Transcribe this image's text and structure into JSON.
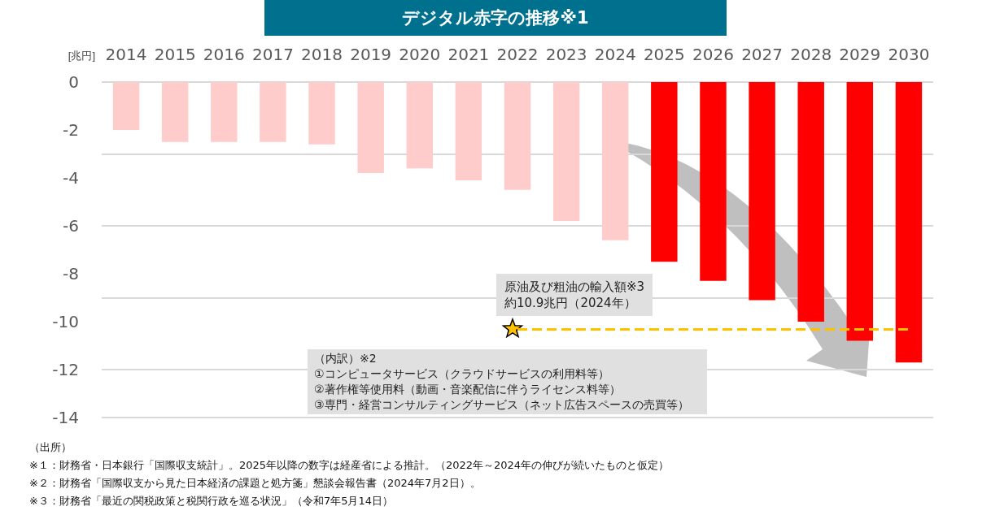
{
  "chart_data": {
    "type": "bar",
    "title": "デジタル赤字の推移※1",
    "ylabel": "[兆円]",
    "categories": [
      "2014",
      "2015",
      "2016",
      "2017",
      "2018",
      "2019",
      "2020",
      "2021",
      "2022",
      "2023",
      "2024",
      "2025",
      "2026",
      "2027",
      "2028",
      "2029",
      "2030"
    ],
    "values": [
      -2.0,
      -2.5,
      -2.5,
      -2.5,
      -2.6,
      -3.8,
      -3.6,
      -4.1,
      -4.5,
      -5.8,
      -6.6,
      -7.5,
      -8.3,
      -9.1,
      -10.0,
      -10.8,
      -11.7
    ],
    "colors": [
      "#ffcccc",
      "#ffcccc",
      "#ffcccc",
      "#ffcccc",
      "#ffcccc",
      "#ffcccc",
      "#ffcccc",
      "#ffcccc",
      "#ffcccc",
      "#ffcccc",
      "#ffcccc",
      "#ff0000",
      "#ff0000",
      "#ff0000",
      "#ff0000",
      "#ff0000",
      "#ff0000"
    ],
    "ylim": [
      -14,
      0
    ],
    "yticks": [
      -14,
      -12,
      -10,
      -8,
      -6,
      -4,
      -2,
      0
    ],
    "grid": "y",
    "ref_lines": [
      {
        "axis": "y",
        "value": -10.3,
        "color": "#ffc000",
        "line_style": "dashed"
      }
    ],
    "annotations": [
      "原油及び粗油の輸入額※3",
      "約10.9兆円（2024年）",
      "（内訳）※2",
      "①コンピュータサービス（クラウドサービスの利用料等）",
      "②著作権等使用料（動画・音楽配信に伴うライセンス料等）",
      "③専門・経営コンサルティングサービス（ネット広告スペースの売買等）",
      "（出所）",
      "※１：財務省・日本銀行「国際収支統計」。2025年以降の数字は経産省による推計。（2022年～2024年の伸びが続いたものと仮定）",
      "※２：財務省「国際収支から見た日本経済の課題と処方箋」懇談会報告書（2024年7月2日）。",
      "※３：財務省「最近の関税政策と税関行政を巡る状況」（令和7年5月14日）"
    ]
  }
}
